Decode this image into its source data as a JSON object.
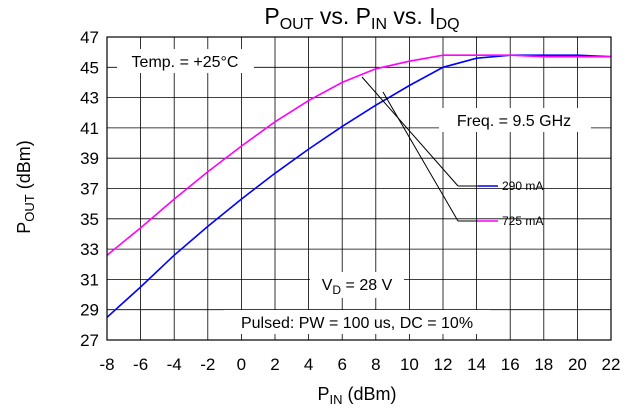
{
  "chart_data": {
    "type": "line",
    "title": {
      "main": "P",
      "sub1": "OUT",
      "mid1": " vs. P",
      "sub2": "IN",
      "mid2": " vs. I",
      "sub3": "DQ"
    },
    "xlabel": {
      "main": "P",
      "sub": "IN",
      "rest": " (dBm)"
    },
    "ylabel": {
      "main": "P",
      "sub": "OUT",
      "rest": " (dBm)"
    },
    "xlim": [
      -8,
      22
    ],
    "ylim": [
      27,
      47
    ],
    "xticks": [
      "-8",
      "-6",
      "-4",
      "-2",
      "0",
      "2",
      "4",
      "6",
      "8",
      "10",
      "12",
      "14",
      "16",
      "18",
      "20",
      "22"
    ],
    "yticks": [
      "27",
      "29",
      "31",
      "33",
      "35",
      "37",
      "39",
      "41",
      "43",
      "45",
      "47"
    ],
    "grid": true,
    "series": [
      {
        "name": "290 mA",
        "color": "#0000ff",
        "x": [
          -8,
          -6,
          -4,
          -2,
          0,
          2,
          4,
          6,
          8,
          10,
          12,
          14,
          16,
          18,
          20,
          22
        ],
        "y": [
          28.5,
          30.5,
          32.6,
          34.5,
          36.3,
          38.0,
          39.6,
          41.1,
          42.5,
          43.8,
          45.0,
          45.6,
          45.8,
          45.8,
          45.8,
          45.7
        ]
      },
      {
        "name": "725 mA",
        "color": "#ff00ff",
        "x": [
          -8,
          -6,
          -4,
          -2,
          0,
          2,
          4,
          6,
          8,
          10,
          12,
          14,
          16,
          18,
          20,
          22
        ],
        "y": [
          32.6,
          34.4,
          36.3,
          38.1,
          39.8,
          41.4,
          42.8,
          44.0,
          44.9,
          45.4,
          45.8,
          45.8,
          45.8,
          45.7,
          45.7,
          45.7
        ]
      }
    ],
    "annotations": {
      "temp": "Temp. = +25°C",
      "freq": "Freq. = 9.5 GHz",
      "vd": {
        "main": "V",
        "sub": "D",
        "rest": " = 28 V"
      },
      "pulsed": "Pulsed: PW = 100  us, DC = 10%"
    }
  }
}
